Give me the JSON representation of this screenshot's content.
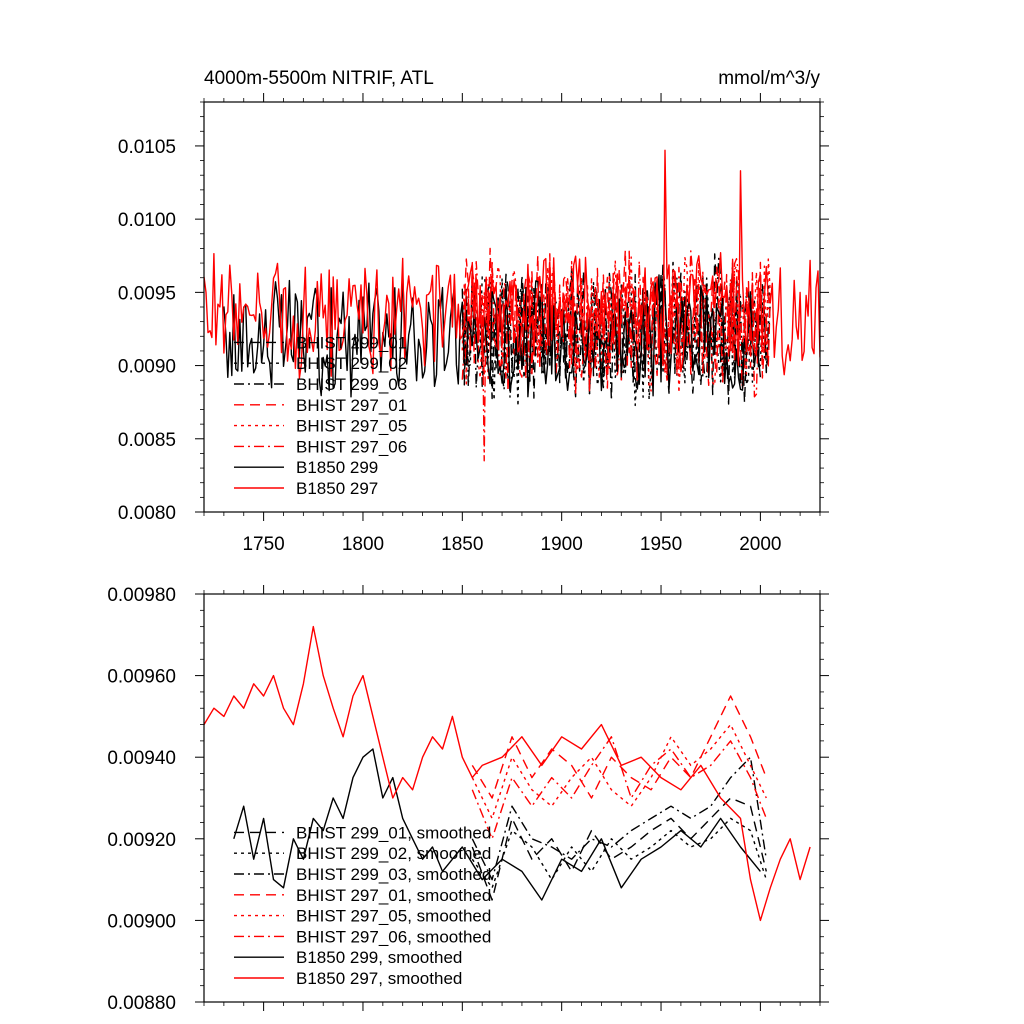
{
  "chart_data": [
    {
      "type": "line",
      "title": "4000m-5500m NITRIF, ATL",
      "units": "mmol/m^3/y",
      "xlim": [
        1720,
        2030
      ],
      "ylim": [
        0.008,
        0.0108
      ],
      "x_ticks": [
        1750,
        1800,
        1850,
        1900,
        1950,
        2000
      ],
      "x_tick_labels": [
        "1750",
        "1800",
        "1850",
        "1900",
        "1950",
        "2000"
      ],
      "y_ticks": [
        0.008,
        0.0085,
        0.009,
        0.0095,
        0.01,
        0.0105
      ],
      "y_tick_labels": [
        "0.0080",
        "0.0085",
        "0.0090",
        "0.0095",
        "0.0100",
        "0.0105"
      ],
      "legend_position": "bottom-left",
      "series": [
        {
          "name": "BHIST 299_01",
          "color": "#000000",
          "style": "longdash",
          "x_range": [
            1850,
            2005
          ],
          "mean": 0.00925,
          "amp": 0.0004,
          "seed": 11
        },
        {
          "name": "BHIST 299_02",
          "color": "#000000",
          "style": "dot",
          "x_range": [
            1850,
            2005
          ],
          "mean": 0.00922,
          "amp": 0.0004,
          "seed": 12
        },
        {
          "name": "BHIST 299_03",
          "color": "#000000",
          "style": "dashdot",
          "x_range": [
            1850,
            2005
          ],
          "mean": 0.00924,
          "amp": 0.0004,
          "seed": 13
        },
        {
          "name": "BHIST 297_01",
          "color": "#ff0000",
          "style": "longdash",
          "x_range": [
            1850,
            2005
          ],
          "mean": 0.0093,
          "amp": 0.0004,
          "seed": 14
        },
        {
          "name": "BHIST 297_05",
          "color": "#ff0000",
          "style": "dot",
          "x_range": [
            1850,
            2005
          ],
          "mean": 0.00931,
          "amp": 0.0004,
          "seed": 15
        },
        {
          "name": "BHIST 297_06",
          "color": "#ff0000",
          "style": "dashdot",
          "x_range": [
            1850,
            2005
          ],
          "mean": 0.00929,
          "amp": 0.0004,
          "seed": 16
        },
        {
          "name": "B1850 299",
          "color": "#000000",
          "style": "solid",
          "x_range": [
            1730,
            2000
          ],
          "mean": 0.0092,
          "amp": 0.00035,
          "seed": 17
        },
        {
          "name": "B1850 297",
          "color": "#ff0000",
          "style": "solid",
          "x_range": [
            1720,
            2030
          ],
          "mean": 0.00935,
          "amp": 0.00035,
          "seed": 18
        }
      ],
      "annotated_peaks": [
        {
          "x": 1952,
          "y": 0.01047,
          "series": "B1850 297"
        },
        {
          "x": 1990,
          "y": 0.01033,
          "series": "B1850 297"
        },
        {
          "x": 1861,
          "y": 0.00835,
          "series": "BHIST 297_06"
        }
      ]
    },
    {
      "type": "line",
      "title": "",
      "units": "",
      "xlim": [
        1720,
        2030
      ],
      "ylim": [
        0.0088,
        0.0098
      ],
      "x_ticks": [
        1750,
        1800,
        1850,
        1900,
        1950,
        2000
      ],
      "x_tick_labels": [],
      "y_ticks": [
        0.0088,
        0.009,
        0.0092,
        0.0094,
        0.0096,
        0.0098
      ],
      "y_tick_labels": [
        "0.00880",
        "0.00900",
        "0.00920",
        "0.00940",
        "0.00960",
        "0.00980"
      ],
      "legend_position": "bottom-left",
      "series": [
        {
          "name": "BHIST 299_01, smoothed",
          "color": "#000000",
          "style": "longdash",
          "points": [
            [
              1855,
              0.00918
            ],
            [
              1865,
              0.00905
            ],
            [
              1875,
              0.00925
            ],
            [
              1885,
              0.00915
            ],
            [
              1895,
              0.0092
            ],
            [
              1905,
              0.00912
            ],
            [
              1915,
              0.00922
            ],
            [
              1925,
              0.00915
            ],
            [
              1935,
              0.00918
            ],
            [
              1945,
              0.00922
            ],
            [
              1955,
              0.00925
            ],
            [
              1965,
              0.0092
            ],
            [
              1975,
              0.00925
            ],
            [
              1985,
              0.0093
            ],
            [
              1995,
              0.00928
            ],
            [
              2003,
              0.00912
            ]
          ]
        },
        {
          "name": "BHIST 299_02, smoothed",
          "color": "#000000",
          "style": "dot",
          "points": [
            [
              1855,
              0.00915
            ],
            [
              1865,
              0.00908
            ],
            [
              1875,
              0.00922
            ],
            [
              1885,
              0.00918
            ],
            [
              1895,
              0.0091
            ],
            [
              1905,
              0.00918
            ],
            [
              1915,
              0.00912
            ],
            [
              1925,
              0.0092
            ],
            [
              1935,
              0.00915
            ],
            [
              1945,
              0.00918
            ],
            [
              1955,
              0.00922
            ],
            [
              1965,
              0.00918
            ],
            [
              1975,
              0.0092
            ],
            [
              1985,
              0.00925
            ],
            [
              1995,
              0.00922
            ],
            [
              2003,
              0.0091
            ]
          ]
        },
        {
          "name": "BHIST 299_03, smoothed",
          "color": "#000000",
          "style": "dashdot",
          "points": [
            [
              1855,
              0.0092
            ],
            [
              1865,
              0.0091
            ],
            [
              1875,
              0.00928
            ],
            [
              1885,
              0.0092
            ],
            [
              1895,
              0.00918
            ],
            [
              1905,
              0.00915
            ],
            [
              1915,
              0.0092
            ],
            [
              1925,
              0.00918
            ],
            [
              1935,
              0.00922
            ],
            [
              1945,
              0.00925
            ],
            [
              1955,
              0.00928
            ],
            [
              1965,
              0.00925
            ],
            [
              1975,
              0.00928
            ],
            [
              1985,
              0.00935
            ],
            [
              1995,
              0.0094
            ],
            [
              2003,
              0.00915
            ]
          ]
        },
        {
          "name": "BHIST 297_01, smoothed",
          "color": "#ff0000",
          "style": "longdash",
          "points": [
            [
              1855,
              0.00938
            ],
            [
              1865,
              0.0093
            ],
            [
              1875,
              0.00945
            ],
            [
              1885,
              0.00935
            ],
            [
              1895,
              0.00942
            ],
            [
              1905,
              0.00938
            ],
            [
              1915,
              0.0093
            ],
            [
              1925,
              0.0094
            ],
            [
              1935,
              0.00935
            ],
            [
              1945,
              0.00932
            ],
            [
              1955,
              0.0094
            ],
            [
              1965,
              0.00935
            ],
            [
              1975,
              0.00945
            ],
            [
              1985,
              0.00955
            ],
            [
              1995,
              0.00945
            ],
            [
              2003,
              0.00935
            ]
          ]
        },
        {
          "name": "BHIST 297_05, smoothed",
          "color": "#ff0000",
          "style": "dot",
          "points": [
            [
              1855,
              0.00935
            ],
            [
              1865,
              0.00925
            ],
            [
              1875,
              0.0094
            ],
            [
              1885,
              0.00932
            ],
            [
              1895,
              0.00928
            ],
            [
              1905,
              0.00935
            ],
            [
              1915,
              0.0094
            ],
            [
              1925,
              0.00932
            ],
            [
              1935,
              0.00928
            ],
            [
              1945,
              0.00935
            ],
            [
              1955,
              0.00945
            ],
            [
              1965,
              0.00938
            ],
            [
              1975,
              0.00942
            ],
            [
              1985,
              0.00948
            ],
            [
              1995,
              0.00938
            ],
            [
              2003,
              0.0093
            ]
          ]
        },
        {
          "name": "BHIST 297_06, smoothed",
          "color": "#ff0000",
          "style": "dashdot",
          "points": [
            [
              1855,
              0.00932
            ],
            [
              1865,
              0.0092
            ],
            [
              1875,
              0.00935
            ],
            [
              1885,
              0.00928
            ],
            [
              1895,
              0.00935
            ],
            [
              1905,
              0.0093
            ],
            [
              1915,
              0.00938
            ],
            [
              1925,
              0.00945
            ],
            [
              1935,
              0.0093
            ],
            [
              1945,
              0.00938
            ],
            [
              1955,
              0.00942
            ],
            [
              1965,
              0.00935
            ],
            [
              1975,
              0.00938
            ],
            [
              1985,
              0.00944
            ],
            [
              1995,
              0.00935
            ],
            [
              2003,
              0.00925
            ]
          ]
        },
        {
          "name": "B1850 299, smoothed",
          "color": "#000000",
          "style": "solid",
          "points": [
            [
              1735,
              0.0092
            ],
            [
              1740,
              0.00928
            ],
            [
              1745,
              0.00915
            ],
            [
              1750,
              0.00925
            ],
            [
              1755,
              0.0091
            ],
            [
              1760,
              0.00908
            ],
            [
              1765,
              0.0092
            ],
            [
              1770,
              0.00915
            ],
            [
              1775,
              0.00925
            ],
            [
              1780,
              0.00922
            ],
            [
              1785,
              0.0093
            ],
            [
              1790,
              0.00925
            ],
            [
              1795,
              0.00935
            ],
            [
              1800,
              0.0094
            ],
            [
              1805,
              0.00942
            ],
            [
              1810,
              0.0093
            ],
            [
              1815,
              0.00935
            ],
            [
              1820,
              0.00925
            ],
            [
              1825,
              0.0092
            ],
            [
              1830,
              0.00915
            ],
            [
              1835,
              0.00918
            ],
            [
              1840,
              0.00912
            ],
            [
              1845,
              0.00915
            ],
            [
              1850,
              0.00918
            ],
            [
              1860,
              0.0091
            ],
            [
              1870,
              0.00915
            ],
            [
              1880,
              0.00912
            ],
            [
              1890,
              0.00905
            ],
            [
              1900,
              0.00915
            ],
            [
              1910,
              0.00912
            ],
            [
              1920,
              0.0092
            ],
            [
              1930,
              0.00908
            ],
            [
              1940,
              0.00915
            ],
            [
              1950,
              0.00918
            ],
            [
              1960,
              0.00922
            ],
            [
              1970,
              0.00918
            ],
            [
              1980,
              0.00925
            ],
            [
              1990,
              0.00918
            ],
            [
              2000,
              0.00912
            ]
          ]
        },
        {
          "name": "B1850 297, smoothed",
          "color": "#ff0000",
          "style": "solid",
          "points": [
            [
              1720,
              0.00948
            ],
            [
              1725,
              0.00952
            ],
            [
              1730,
              0.0095
            ],
            [
              1735,
              0.00955
            ],
            [
              1740,
              0.00952
            ],
            [
              1745,
              0.00958
            ],
            [
              1750,
              0.00955
            ],
            [
              1755,
              0.0096
            ],
            [
              1760,
              0.00952
            ],
            [
              1765,
              0.00948
            ],
            [
              1770,
              0.00958
            ],
            [
              1775,
              0.00972
            ],
            [
              1780,
              0.0096
            ],
            [
              1785,
              0.00952
            ],
            [
              1790,
              0.00945
            ],
            [
              1795,
              0.00955
            ],
            [
              1800,
              0.0096
            ],
            [
              1805,
              0.0095
            ],
            [
              1810,
              0.0094
            ],
            [
              1815,
              0.0093
            ],
            [
              1820,
              0.00935
            ],
            [
              1825,
              0.00932
            ],
            [
              1830,
              0.0094
            ],
            [
              1835,
              0.00945
            ],
            [
              1840,
              0.00942
            ],
            [
              1845,
              0.0095
            ],
            [
              1850,
              0.0094
            ],
            [
              1855,
              0.00935
            ],
            [
              1860,
              0.00938
            ],
            [
              1870,
              0.0094
            ],
            [
              1880,
              0.00945
            ],
            [
              1890,
              0.00938
            ],
            [
              1900,
              0.00945
            ],
            [
              1910,
              0.00942
            ],
            [
              1920,
              0.00948
            ],
            [
              1930,
              0.00938
            ],
            [
              1940,
              0.0094
            ],
            [
              1950,
              0.00935
            ],
            [
              1960,
              0.00932
            ],
            [
              1970,
              0.00938
            ],
            [
              1980,
              0.0093
            ],
            [
              1990,
              0.00925
            ],
            [
              1995,
              0.0091
            ],
            [
              2000,
              0.009
            ],
            [
              2005,
              0.00908
            ],
            [
              2010,
              0.00915
            ],
            [
              2015,
              0.0092
            ],
            [
              2020,
              0.0091
            ],
            [
              2025,
              0.00918
            ]
          ]
        }
      ]
    }
  ]
}
